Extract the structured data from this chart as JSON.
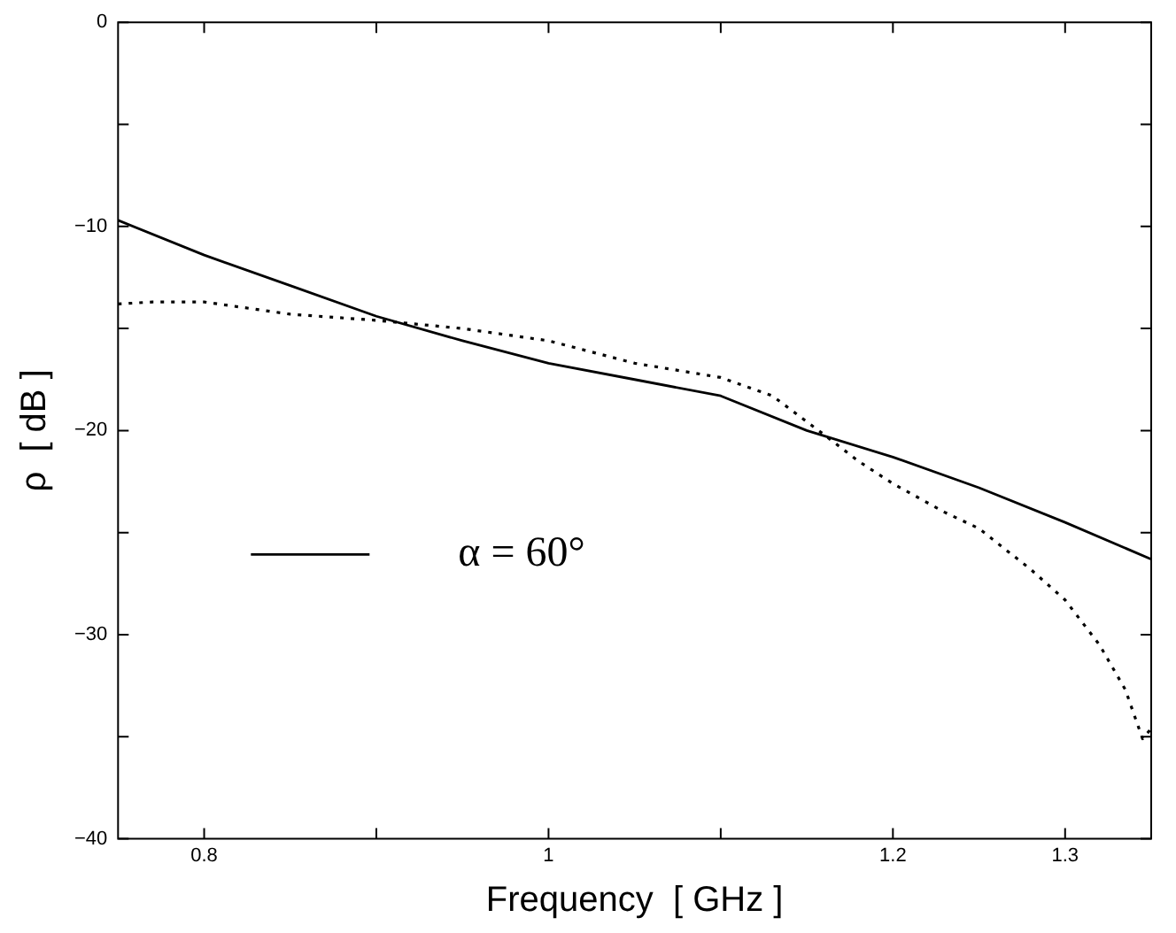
{
  "chart_data": {
    "type": "line",
    "xlabel": "Frequency  [ GHz ]",
    "ylabel": "ρ  [ dB ]",
    "xlim": [
      0.75,
      1.35
    ],
    "xticks": [
      0.8,
      {
        "value": 0.9,
        "label": null
      },
      1,
      {
        "value": 1.1,
        "label": null
      },
      1.2,
      1.3
    ],
    "ylim": [
      -40,
      0
    ],
    "yticks": [
      -40,
      {
        "value": -35,
        "label": null
      },
      -30,
      {
        "value": -25,
        "label": null
      },
      -20,
      {
        "value": -15,
        "label": null
      },
      -10,
      {
        "value": -5,
        "label": null
      },
      0
    ],
    "grid": false,
    "legend": "left",
    "marker": "none",
    "series": [
      {
        "name": "α = 60°",
        "color": "#000000",
        "line_style": "solid",
        "x": [
          0.75,
          0.8,
          0.85,
          0.9,
          0.95,
          1.0,
          1.05,
          1.1,
          1.15,
          1.2,
          1.25,
          1.3,
          1.35
        ],
        "values": [
          -9.7,
          -11.4,
          -12.9,
          -14.4,
          -15.6,
          -16.7,
          -17.5,
          -18.3,
          -20.0,
          -21.3,
          -22.8,
          -24.5,
          -26.3
        ]
      },
      {
        "color": "#000000",
        "line_style": "dotted",
        "x": [
          0.75,
          0.77,
          0.8,
          0.85,
          0.9,
          0.95,
          1.0,
          1.05,
          1.1,
          1.13,
          1.16,
          1.18,
          1.2,
          1.23,
          1.25,
          1.28,
          1.3,
          1.32,
          1.335,
          1.345,
          1.35
        ],
        "values": [
          -13.8,
          -13.7,
          -13.7,
          -14.3,
          -14.6,
          -15.0,
          -15.6,
          -16.7,
          -17.4,
          -18.3,
          -20.2,
          -21.5,
          -22.6,
          -24.0,
          -24.8,
          -26.8,
          -28.3,
          -30.5,
          -32.7,
          -35.1,
          -34.6
        ]
      }
    ]
  }
}
